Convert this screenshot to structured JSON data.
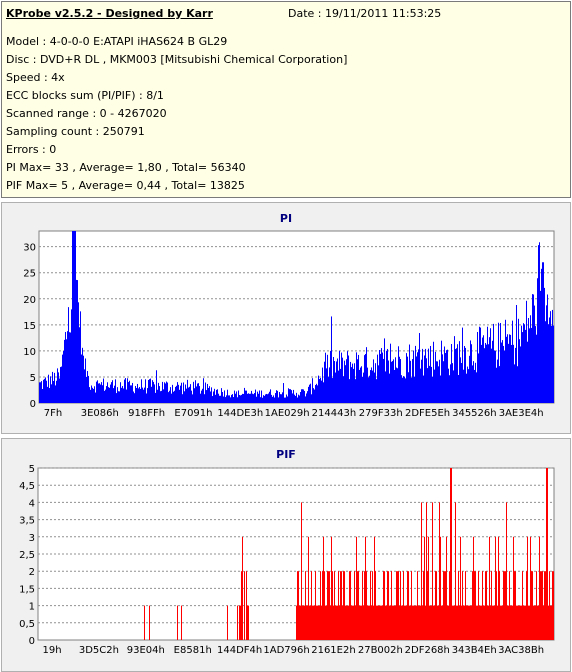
{
  "info": {
    "title": "KProbe v2.5.2 - Designed by Karr",
    "date": "Date : 19/11/2011 11:53:25",
    "lines": [
      "Model : 4-0-0-0 E:ATAPI  iHAS624  B     GL29",
      "Disc : DVD+R DL , MKM003 [Mitsubishi Chemical Corporation]",
      "Speed : 4x",
      "ECC blocks sum (PI/PIF) : 8/1",
      "Scanned range : 0 - 4267020",
      "Sampling count : 250791",
      "Errors : 0",
      "PI Max= 33 , Average= 1,80 , Total= 56340",
      "PIF Max= 5 , Average= 0,44 , Total= 13825"
    ]
  },
  "colors": {
    "pi_fill": "#0000ff",
    "pif_fill": "#ff0000",
    "grid": "#909090",
    "plot_bg": "#ffffff",
    "title": "#000080"
  },
  "chart_data": [
    {
      "type": "area",
      "title": "PI",
      "ylim": [
        0,
        33
      ],
      "yticks": [
        0,
        5,
        10,
        15,
        20,
        25,
        30
      ],
      "xtick_labels": [
        "7Fh",
        "3E086h",
        "918FFh",
        "E7091h",
        "144DE3h",
        "1AE029h",
        "214443h",
        "279F33h",
        "2DFE5Eh",
        "345526h",
        "3AE3E4h"
      ],
      "grid": true,
      "profile": [
        {
          "x": 0.0,
          "base": 2,
          "var": 3
        },
        {
          "x": 0.04,
          "base": 3,
          "var": 4
        },
        {
          "x": 0.055,
          "base": 10,
          "var": 10
        },
        {
          "x": 0.07,
          "base": 20,
          "var": 13
        },
        {
          "x": 0.085,
          "base": 6,
          "var": 4
        },
        {
          "x": 0.1,
          "base": 2,
          "var": 3
        },
        {
          "x": 0.3,
          "base": 1.5,
          "var": 3
        },
        {
          "x": 0.38,
          "base": 1,
          "var": 1.5
        },
        {
          "x": 0.52,
          "base": 1,
          "var": 2
        },
        {
          "x": 0.56,
          "base": 4,
          "var": 6
        },
        {
          "x": 0.8,
          "base": 5,
          "var": 8
        },
        {
          "x": 0.93,
          "base": 7,
          "var": 10
        },
        {
          "x": 0.975,
          "base": 13,
          "var": 14
        },
        {
          "x": 1.0,
          "base": 15,
          "var": 6
        }
      ],
      "peak": {
        "position": 0.066,
        "value": 33
      },
      "tail_peak": {
        "position": 0.978,
        "value": 27
      }
    },
    {
      "type": "bar",
      "title": "PIF",
      "ylim": [
        0,
        5
      ],
      "yticks": [
        0,
        0.5,
        1,
        1.5,
        2,
        2.5,
        3,
        3.5,
        4,
        4.5,
        5
      ],
      "ytick_labels": [
        "0",
        "0,5",
        "1",
        "1,5",
        "2",
        "2,5",
        "3",
        "3,5",
        "4",
        "4,5",
        "5"
      ],
      "xtick_labels": [
        "19h",
        "3D5C2h",
        "93E04h",
        "E8581h",
        "144DF4h",
        "1AD796h",
        "2161E2h",
        "27B002h",
        "2DF268h",
        "343B4Eh",
        "3AC38Bh"
      ],
      "grid": true,
      "sparse_region_end": 0.5,
      "dense_region_start": 0.5,
      "max_value": 5,
      "peak_positions": [
        0.8,
        0.985
      ]
    }
  ]
}
